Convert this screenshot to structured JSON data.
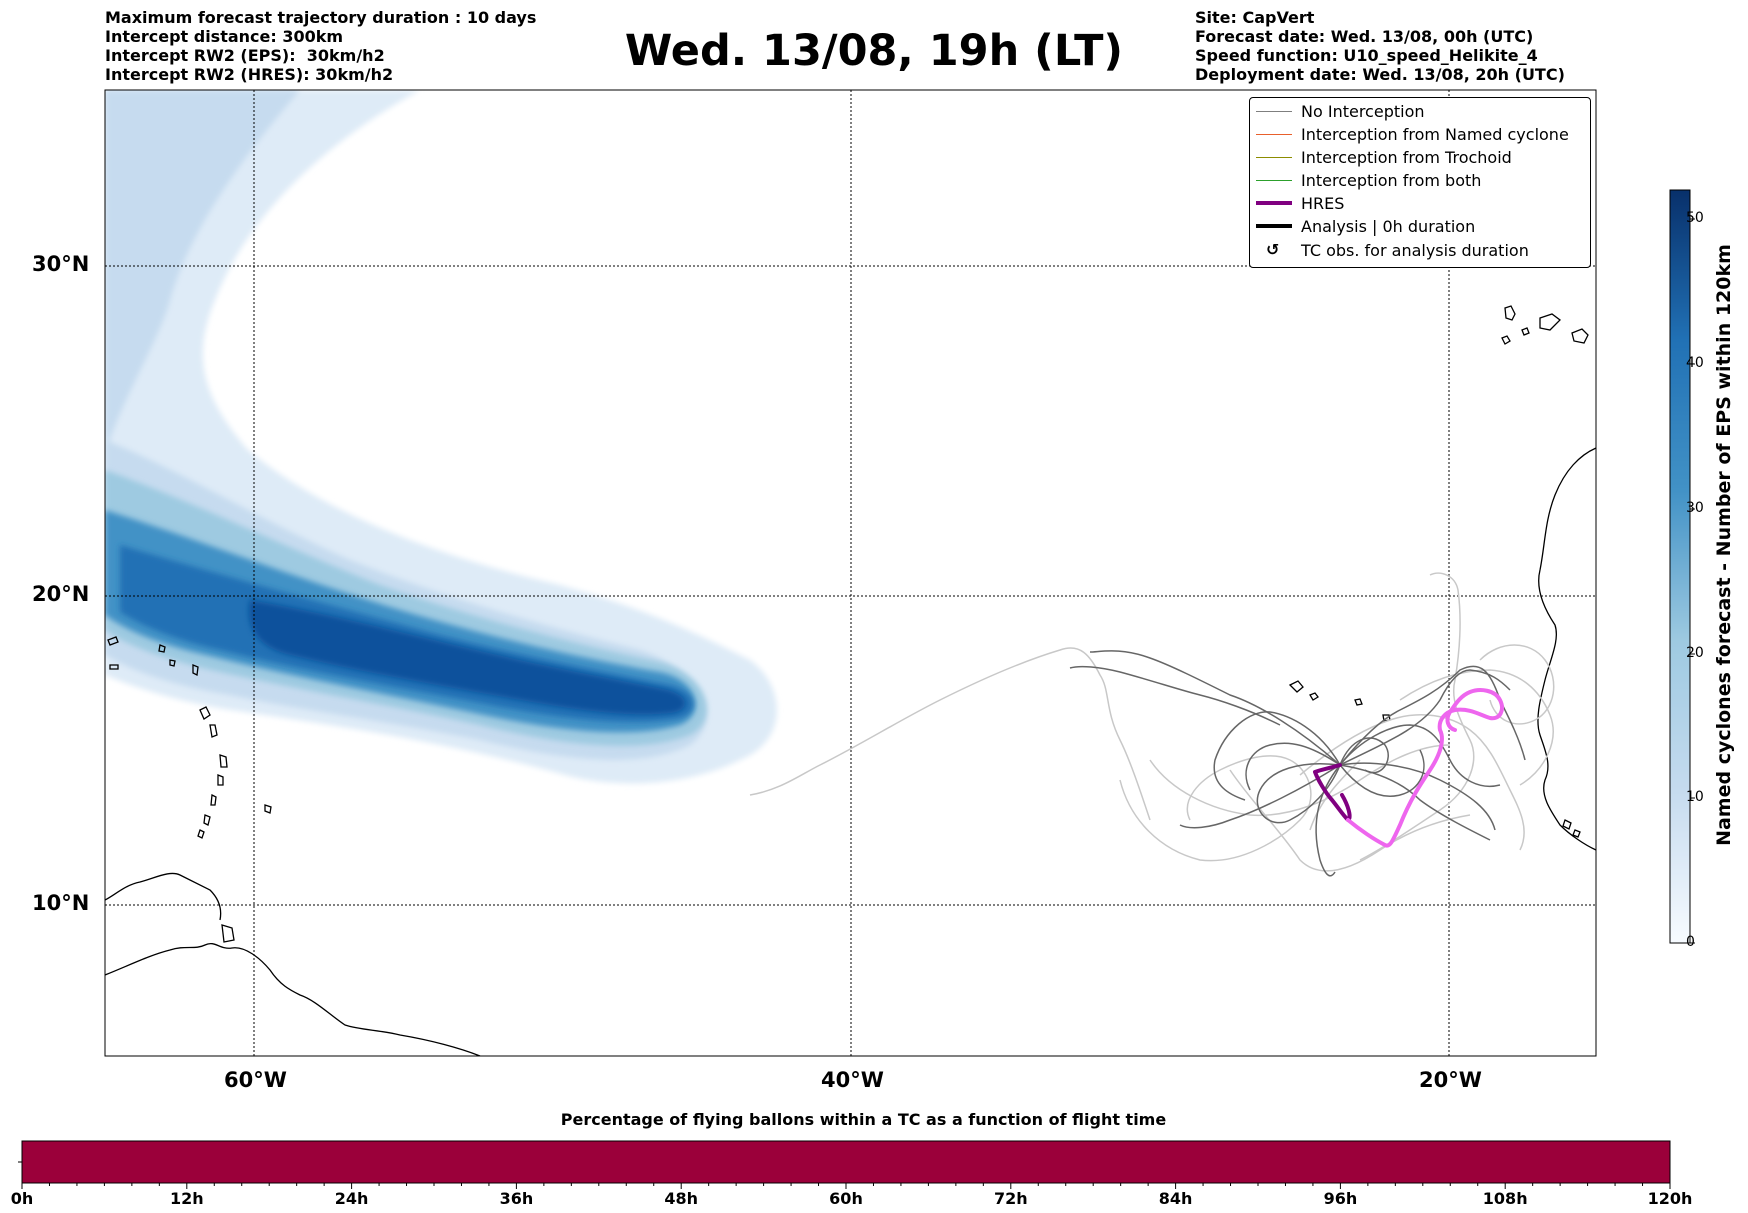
{
  "header_left": [
    "Maximum forecast trajectory duration : 10 days",
    "Intercept distance: 300km",
    "Intercept RW2 (EPS):  30km/h2",
    "Intercept RW2 (HRES): 30km/h2"
  ],
  "title": "Wed. 13/08, 19h (LT)",
  "header_right": [
    "Site: CapVert",
    "Forecast date: Wed. 13/08, 00h (UTC)",
    "Speed function: U10_speed_Helikite_4",
    "Deployment date: Wed. 13/08, 20h (UTC)"
  ],
  "lat_labels": [
    "30°N",
    "20°N",
    "10°N"
  ],
  "lon_labels": [
    "60°W",
    "40°W",
    "20°W"
  ],
  "legend": [
    {
      "label": "No Interception",
      "color": "#7f7f7f",
      "style": "thin"
    },
    {
      "label": "Interception from Named cyclone",
      "color": "#e8602c",
      "style": "thin"
    },
    {
      "label": "Interception from Trochoid",
      "color": "#8c8c00",
      "style": "thin"
    },
    {
      "label": "Interception from both",
      "color": "#2ca02c",
      "style": "thin"
    },
    {
      "label": "HRES",
      "color": "#800080",
      "style": "thick"
    },
    {
      "label": "Analysis | 0h duration",
      "color": "#000000",
      "style": "thick"
    },
    {
      "label": "TC obs. for analysis duration",
      "color": "#000000",
      "style": "symbol",
      "symbol": "↺"
    }
  ],
  "colorbar": {
    "title": "Named cyclones forecast - Number of EPS within 120km",
    "ticks": [
      "0",
      "10",
      "20",
      "30",
      "40",
      "50"
    ],
    "range": [
      0,
      52
    ],
    "color_low": "#f7fbff",
    "color_high": "#08306b"
  },
  "bottom_bar": {
    "title": "Percentage of flying ballons within a TC as a function of flight time",
    "ticks": [
      "0h",
      "12h",
      "24h",
      "36h",
      "48h",
      "60h",
      "72h",
      "84h",
      "96h",
      "108h",
      "120h"
    ],
    "fill_color": "#9b003a",
    "percentage": 0
  },
  "colors": {
    "hres": "#800080",
    "hres_light": "#ee66ee",
    "eps_dark": "#666666",
    "eps_light": "#c8c8c8"
  }
}
